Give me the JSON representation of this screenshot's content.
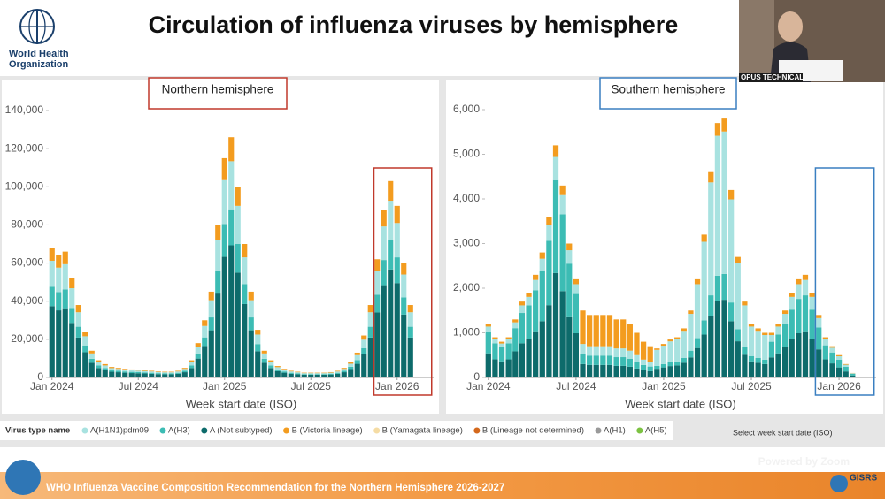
{
  "slide": {
    "title": "Circulation of influenza viruses by hemisphere",
    "logo_text_1": "World Health",
    "logo_text_2": "Organization",
    "footer": "WHO Influenza Vaccine Composition Recommendation for the Northern Hemisphere 2026-2027",
    "powered_by": "Powered by Zoom",
    "speaker_label": "OPUS TECHNICAL",
    "partner_logo": "GISRS",
    "filter_hint": "Select week start date (ISO)"
  },
  "legend": {
    "title": "Virus type name",
    "extra_items": [
      {
        "name": "B (Yamagata lineage)",
        "color": "#f5dca4"
      },
      {
        "name": "B (Lineage not determined)",
        "color": "#d4681c"
      },
      {
        "name": "A(H1)",
        "color": "#9a9a9a"
      },
      {
        "name": "A(H5)",
        "color": "#7cc242"
      }
    ]
  },
  "chart_data": [
    {
      "type": "bar",
      "stacked": true,
      "title": "Northern hemisphere",
      "x_label": "Week start date (ISO)",
      "categories": [
        null,
        null,
        null,
        null,
        null,
        null,
        null,
        null,
        null,
        null,
        null,
        null,
        null,
        null,
        null,
        null,
        null,
        null,
        null,
        null,
        null,
        null,
        null,
        null,
        null,
        null,
        null,
        null,
        null,
        null,
        null,
        null,
        null,
        null,
        null,
        null,
        null,
        null,
        null,
        null,
        null,
        null,
        null,
        null,
        null,
        null,
        null,
        null,
        null,
        null,
        null,
        null,
        null,
        null,
        null
      ],
      "xlim": [
        -0.5,
        57.5
      ],
      "xticks": [
        {
          "value": 0,
          "label": "Jan 2024"
        },
        {
          "value": 13,
          "label": "Jul 2024"
        },
        {
          "value": 26,
          "label": "Jan 2025"
        },
        {
          "value": 39,
          "label": "Jul 2025"
        },
        {
          "value": 52,
          "label": "Jan 2026"
        }
      ],
      "ylim": [
        0,
        140000
      ],
      "yticks": [
        0,
        {
          "value": 20000,
          "label": "20,000"
        },
        {
          "value": 40000,
          "label": "40,000"
        },
        {
          "value": 60000,
          "label": "60,000"
        },
        {
          "value": 80000,
          "label": "80,000"
        },
        {
          "value": 100000,
          "label": "100,000"
        },
        {
          "value": 120000,
          "label": "120,000"
        },
        {
          "value": 140000,
          "label": "140,000"
        }
      ],
      "grid": false,
      "series": [
        {
          "name": "A(H1N1)pdm09",
          "color": "#a8e2e0",
          "values": [
            13600,
            12800,
            13200,
            10400,
            7600,
            4800,
            2800,
            1800,
            1400,
            1100,
            1000,
            900,
            850,
            800,
            750,
            700,
            650,
            600,
            600,
            700,
            1000,
            1800,
            3600,
            6000,
            9000,
            16000,
            23000,
            25200,
            20000,
            14000,
            9000,
            5000,
            2800,
            1800,
            1200,
            900,
            700,
            600,
            500,
            500,
            500,
            500,
            550,
            700,
            1000,
            1600,
            2600,
            4400,
            7600,
            12400,
            17600,
            20600,
            18000,
            12000,
            7600
          ]
        },
        {
          "name": "A(H3)",
          "color": "#3cbcb4",
          "values": [
            10200,
            9600,
            9900,
            7800,
            5700,
            3600,
            2100,
            1350,
            1050,
            800,
            750,
            650,
            650,
            600,
            550,
            550,
            500,
            450,
            450,
            550,
            750,
            1350,
            2700,
            4500,
            6750,
            12000,
            17250,
            18900,
            15000,
            10500,
            6750,
            3750,
            2100,
            1350,
            900,
            650,
            550,
            450,
            350,
            350,
            350,
            350,
            400,
            550,
            750,
            1200,
            1950,
            3300,
            5700,
            9300,
            13200,
            15450,
            13500,
            9000,
            5700
          ]
        },
        {
          "name": "A (Not subtyped)",
          "color": "#0d6b6b",
          "values": [
            37400,
            35200,
            36300,
            28600,
            20900,
            13200,
            7700,
            4950,
            3850,
            3000,
            2750,
            2500,
            2300,
            2200,
            2100,
            1900,
            1750,
            1650,
            1650,
            1900,
            2750,
            4950,
            9900,
            16500,
            24750,
            44000,
            63250,
            69300,
            55000,
            38500,
            24750,
            13750,
            7700,
            4950,
            3300,
            2500,
            1900,
            1650,
            1400,
            1400,
            1400,
            1400,
            1550,
            1900,
            2750,
            4400,
            7150,
            12100,
            20900,
            34100,
            48400,
            56650,
            49500,
            33000,
            20900
          ]
        },
        {
          "name": "B (Victoria lineage)",
          "color": "#f39c1f",
          "values": [
            6800,
            6400,
            6600,
            5200,
            3800,
            2400,
            1400,
            900,
            700,
            600,
            500,
            450,
            400,
            400,
            400,
            350,
            300,
            300,
            300,
            350,
            500,
            900,
            1800,
            3000,
            4500,
            8000,
            11500,
            12600,
            10000,
            7000,
            4500,
            2500,
            1400,
            900,
            600,
            450,
            350,
            300,
            250,
            250,
            250,
            250,
            300,
            350,
            500,
            800,
            1300,
            2200,
            3800,
            6200,
            8800,
            10300,
            9000,
            6000,
            3800
          ]
        }
      ]
    },
    {
      "type": "bar",
      "stacked": true,
      "title": "Southern hemisphere",
      "x_label": "Week start date (ISO)",
      "categories": [
        null,
        null,
        null,
        null,
        null,
        null,
        null,
        null,
        null,
        null,
        null,
        null,
        null,
        null,
        null,
        null,
        null,
        null,
        null,
        null,
        null,
        null,
        null,
        null,
        null,
        null,
        null,
        null,
        null,
        null,
        null,
        null,
        null,
        null,
        null,
        null,
        null,
        null,
        null,
        null,
        null,
        null,
        null,
        null,
        null,
        null,
        null,
        null,
        null,
        null,
        null,
        null,
        null,
        null,
        null
      ],
      "xlim": [
        -0.5,
        57.5
      ],
      "xticks": [
        {
          "value": 0,
          "label": "Jan 2024"
        },
        {
          "value": 13,
          "label": "Jul 2024"
        },
        {
          "value": 26,
          "label": "Jan 2025"
        },
        {
          "value": 39,
          "label": "Jul 2025"
        },
        {
          "value": 52,
          "label": "Jan 2026"
        }
      ],
      "ylim": [
        0,
        6000
      ],
      "yticks": [
        0,
        {
          "value": 1000,
          "label": "1,000"
        },
        {
          "value": 2000,
          "label": "2,000"
        },
        {
          "value": 3000,
          "label": "3,000"
        },
        {
          "value": 4000,
          "label": "4,000"
        },
        {
          "value": 5000,
          "label": "5,000"
        },
        {
          "value": 6000,
          "label": "6,000"
        }
      ],
      "grid": false,
      "series": [
        {
          "name": "A(H1N1)pdm09",
          "color": "#a8e2e0",
          "values": [
            120,
            90,
            80,
            90,
            130,
            170,
            190,
            230,
            280,
            360,
            520,
            430,
            300,
            220,
            225,
            210,
            210,
            210,
            210,
            195,
            195,
            180,
            150,
            120,
            105,
            358,
            412,
            468,
            495,
            605,
            825,
            1210,
            1760,
            2530,
            3135,
            3190,
            2310,
            1485,
            935,
            660,
            605,
            550,
            150,
            180,
            225,
            285,
            330,
            345,
            285,
            210,
            135,
            105,
            75,
            45,
            15
          ]
        },
        {
          "name": "A(H3)",
          "color": "#3cbcb4",
          "values": [
            480,
            360,
            320,
            360,
            520,
            680,
            760,
            920,
            1120,
            1440,
            2080,
            1720,
            1200,
            880,
            225,
            210,
            210,
            210,
            210,
            195,
            195,
            180,
            150,
            120,
            105,
            65,
            75,
            85,
            90,
            110,
            150,
            220,
            320,
            460,
            570,
            580,
            420,
            270,
            170,
            120,
            110,
            100,
            350,
            420,
            525,
            665,
            770,
            805,
            665,
            490,
            315,
            245,
            175,
            105,
            35
          ]
        },
        {
          "name": "A (Not subtyped)",
          "color": "#0d6b6b",
          "values": [
            540,
            405,
            360,
            405,
            585,
            765,
            855,
            1035,
            1260,
            1620,
            2340,
            1935,
            1350,
            990,
            300,
            280,
            280,
            280,
            280,
            260,
            260,
            240,
            200,
            160,
            140,
            195,
            225,
            255,
            270,
            330,
            450,
            660,
            960,
            1380,
            1710,
            1740,
            1260,
            810,
            510,
            360,
            330,
            300,
            450,
            540,
            675,
            855,
            990,
            1035,
            855,
            630,
            405,
            315,
            225,
            135,
            45
          ]
        },
        {
          "name": "B (Victoria lineage)",
          "color": "#f39c1f",
          "values": [
            60,
            45,
            40,
            45,
            65,
            85,
            95,
            115,
            140,
            180,
            260,
            215,
            150,
            110,
            750,
            700,
            700,
            700,
            700,
            650,
            650,
            600,
            500,
            400,
            350,
            32,
            38,
            42,
            45,
            55,
            75,
            110,
            160,
            230,
            285,
            290,
            210,
            135,
            85,
            60,
            55,
            50,
            50,
            60,
            75,
            95,
            110,
            115,
            95,
            70,
            45,
            35,
            25,
            15,
            5
          ]
        }
      ]
    }
  ]
}
